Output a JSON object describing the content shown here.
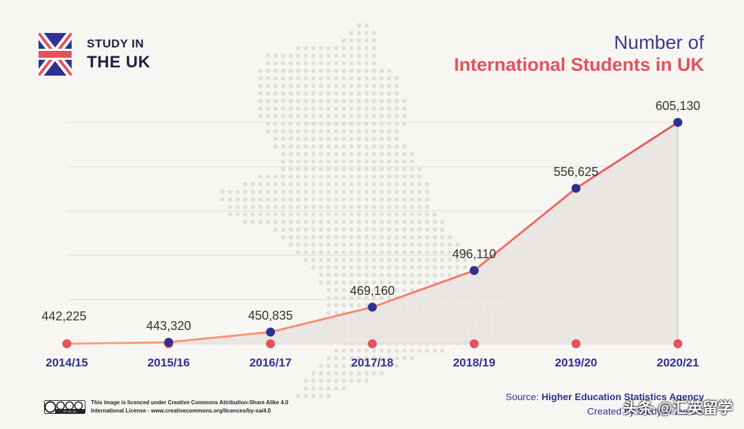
{
  "brand": {
    "line1": "STUDY IN",
    "line2": "THE UK"
  },
  "title": {
    "line1": "Number of",
    "line2": "International Students in UK"
  },
  "colors": {
    "navy": "#2e3192",
    "red": "#e4525b",
    "orange": "#f7a26f",
    "area": "#e6e3e0",
    "grid": "#dcdcdc"
  },
  "chart_data": {
    "type": "line",
    "title": "Number of International Students in UK",
    "categories": [
      "2014/15",
      "2015/16",
      "2016/17",
      "2017/18",
      "2018/19",
      "2019/20",
      "2020/21"
    ],
    "values": [
      442225,
      443320,
      450835,
      469160,
      496110,
      556625,
      605130
    ],
    "value_labels": [
      "442,225",
      "443,320",
      "450,835",
      "469,160",
      "496,110",
      "556,625",
      "605,130"
    ],
    "grid": true,
    "area_fill": true
  },
  "license": {
    "badge_text": "BY NC SA",
    "line1": "This image is licenced under Creative Commons Attribution-Share Alike 4.0",
    "line2": "International License - www.creativecommons.org/licences/by-sa/4.0"
  },
  "source": {
    "prefix": "Source: ",
    "name": "Higher Education Statistics Agency",
    "created": "Created by Study in the UK"
  },
  "watermark": "头条 @汇英留学"
}
